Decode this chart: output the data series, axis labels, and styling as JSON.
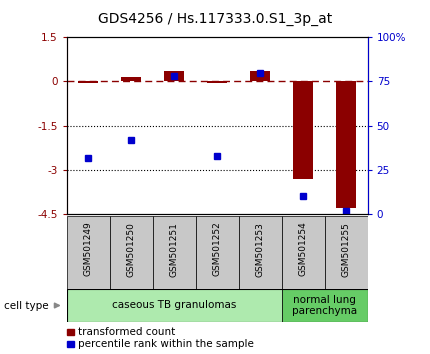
{
  "title": "GDS4256 / Hs.117333.0.S1_3p_at",
  "samples": [
    "GSM501249",
    "GSM501250",
    "GSM501251",
    "GSM501252",
    "GSM501253",
    "GSM501254",
    "GSM501255"
  ],
  "transformed_count": [
    -0.07,
    0.15,
    0.35,
    -0.05,
    0.35,
    -3.3,
    -4.3
  ],
  "percentile_rank": [
    32,
    42,
    78,
    33,
    80,
    10,
    2
  ],
  "ylim_left": [
    -4.5,
    1.5
  ],
  "ylim_right": [
    0,
    100
  ],
  "yticks_left": [
    1.5,
    0,
    -1.5,
    -3,
    -4.5
  ],
  "ytick_labels_left": [
    "1.5",
    "0",
    "-1.5",
    "-3",
    "-4.5"
  ],
  "yticks_right": [
    0,
    25,
    50,
    75,
    100
  ],
  "ytick_labels_right": [
    "0",
    "25",
    "50",
    "75",
    "100%"
  ],
  "hlines_dotted": [
    -1.5,
    -3.0
  ],
  "hline_dashed": 0,
  "bar_color": "#8B0000",
  "dot_color": "#0000CD",
  "groups": [
    {
      "label": "caseous TB granulomas",
      "samples": [
        0,
        1,
        2,
        3,
        4
      ],
      "color": "#AEEAAE"
    },
    {
      "label": "normal lung\nparenchyma",
      "samples": [
        5,
        6
      ],
      "color": "#66CC66"
    }
  ],
  "cell_type_label": "cell type",
  "legend_items": [
    {
      "color": "#8B0000",
      "label": "transformed count"
    },
    {
      "color": "#0000CD",
      "label": "percentile rank within the sample"
    }
  ],
  "group_box_color": "#C8C8C8",
  "title_fontsize": 10,
  "tick_fontsize": 7.5,
  "sample_fontsize": 6.5,
  "group_fontsize": 7.5,
  "legend_fontsize": 7.5
}
